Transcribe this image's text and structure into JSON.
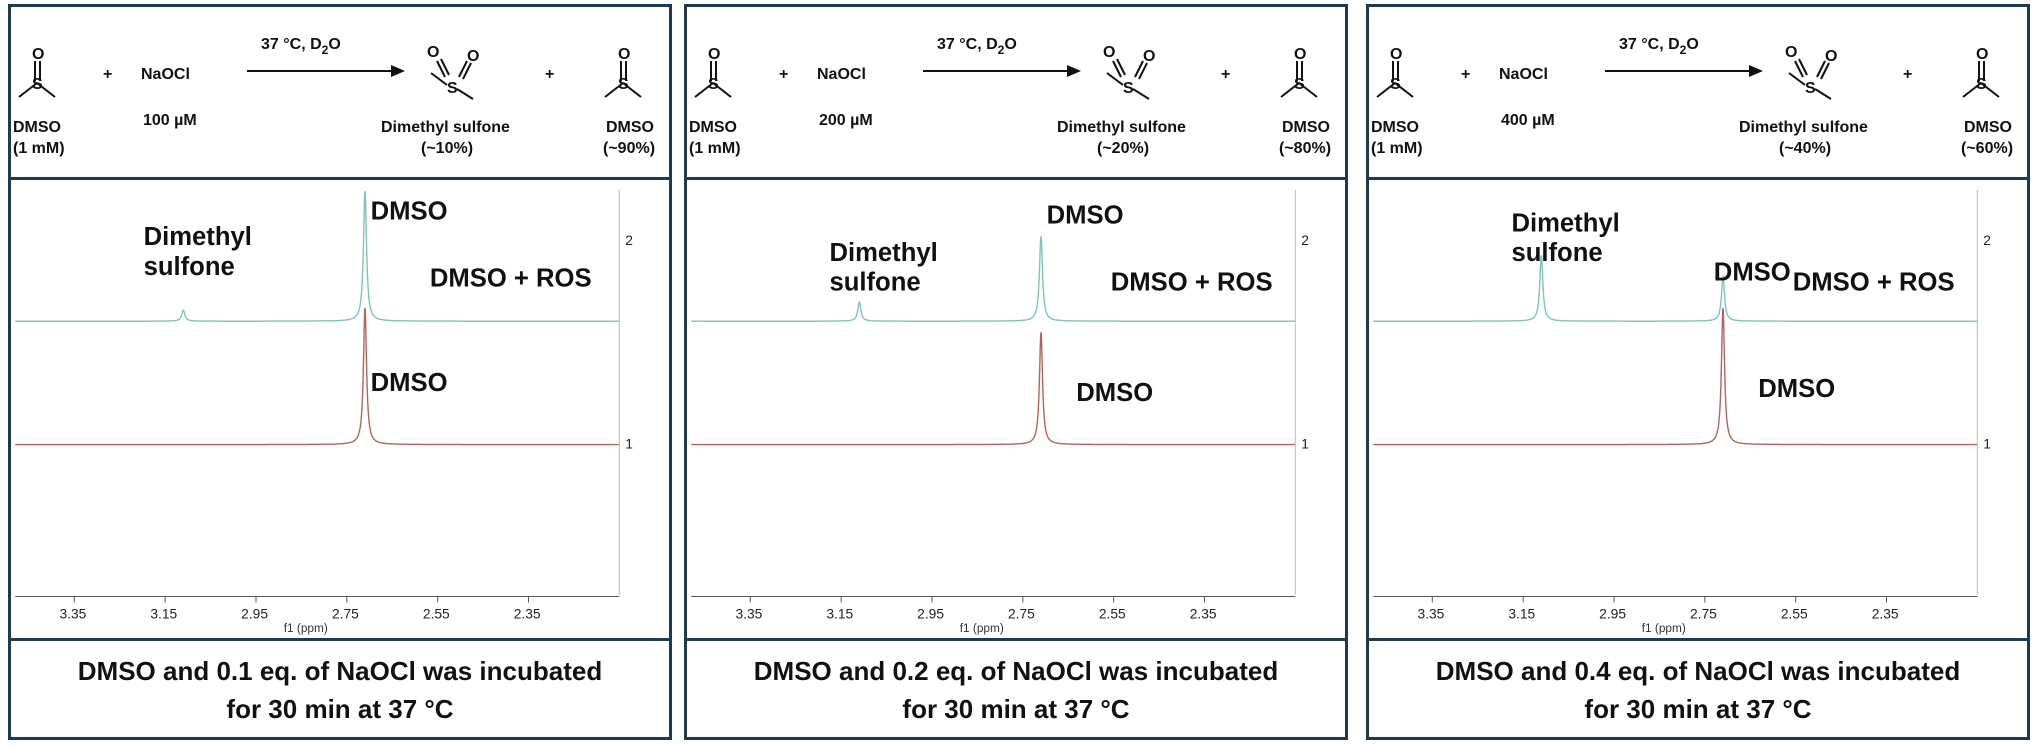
{
  "scheme_common": {
    "condition": "37 °C, D",
    "condition_sub": "2",
    "condition_tail": "O",
    "dmso": "DMSO",
    "dmso_conc": "(1 mM)",
    "naocl": "NaOCl",
    "plus": "+",
    "product": "Dimethyl sulfone",
    "remaining": "DMSO"
  },
  "panels": [
    {
      "naocl_conc": "100 µM",
      "product_yield": "(~10%)",
      "remaining_yield": "(~90%)",
      "labels": {
        "sulfone_1": "Dimethyl",
        "sulfone_2": "sulfone",
        "dmso_top": "DMSO",
        "trace_top": "DMSO + ROS",
        "dmso_bottom": "DMSO"
      },
      "caption_1": "DMSO and 0.1 eq. of NaOCl was incubated",
      "caption_2": "for 30 min at 37 °C"
    },
    {
      "naocl_conc": "200 µM",
      "product_yield": "(~20%)",
      "remaining_yield": "(~80%)",
      "labels": {
        "sulfone_1": "Dimethyl",
        "sulfone_2": "sulfone",
        "dmso_top": "DMSO",
        "trace_top": "DMSO + ROS",
        "dmso_bottom": "DMSO"
      },
      "caption_1": "DMSO and 0.2 eq. of NaOCl was incubated",
      "caption_2": "for 30 min at 37 °C"
    },
    {
      "naocl_conc": "400 µM",
      "product_yield": "(~40%)",
      "remaining_yield": "(~60%)",
      "labels": {
        "sulfone_1": "Dimethyl",
        "sulfone_2": "sulfone",
        "dmso_top": "DMSO",
        "trace_top": "DMSO + ROS",
        "dmso_bottom": "DMSO"
      },
      "caption_1": "DMSO and 0.4 eq. of NaOCl was incubated",
      "caption_2": "for 30 min at 37 °C"
    }
  ],
  "chart_data": {
    "type": "line",
    "xlabel": "f1 (ppm)",
    "x_ticks": [
      "3.35",
      "3.15",
      "2.95",
      "2.75",
      "2.55",
      "2.35"
    ],
    "xlim": [
      3.48,
      2.15
    ],
    "trace_ticks": [
      "2",
      "1"
    ],
    "colors": {
      "trace_2": "#7fc4b8",
      "trace_1": "#b5625a"
    },
    "panels": [
      {
        "series": [
          {
            "trace": "2",
            "peaks": [
              {
                "ppm": 3.11,
                "height": 0.08
              },
              {
                "ppm": 2.71,
                "height": 0.95
              }
            ]
          },
          {
            "trace": "1",
            "peaks": [
              {
                "ppm": 2.71,
                "height": 1.0
              }
            ]
          }
        ]
      },
      {
        "series": [
          {
            "trace": "2",
            "peaks": [
              {
                "ppm": 3.11,
                "height": 0.14
              },
              {
                "ppm": 2.71,
                "height": 0.62
              }
            ]
          },
          {
            "trace": "1",
            "peaks": [
              {
                "ppm": 2.71,
                "height": 0.82
              }
            ]
          }
        ]
      },
      {
        "series": [
          {
            "trace": "2",
            "peaks": [
              {
                "ppm": 3.11,
                "height": 0.48
              },
              {
                "ppm": 2.71,
                "height": 0.32
              }
            ]
          },
          {
            "trace": "1",
            "peaks": [
              {
                "ppm": 2.71,
                "height": 1.0
              }
            ]
          }
        ]
      }
    ]
  }
}
